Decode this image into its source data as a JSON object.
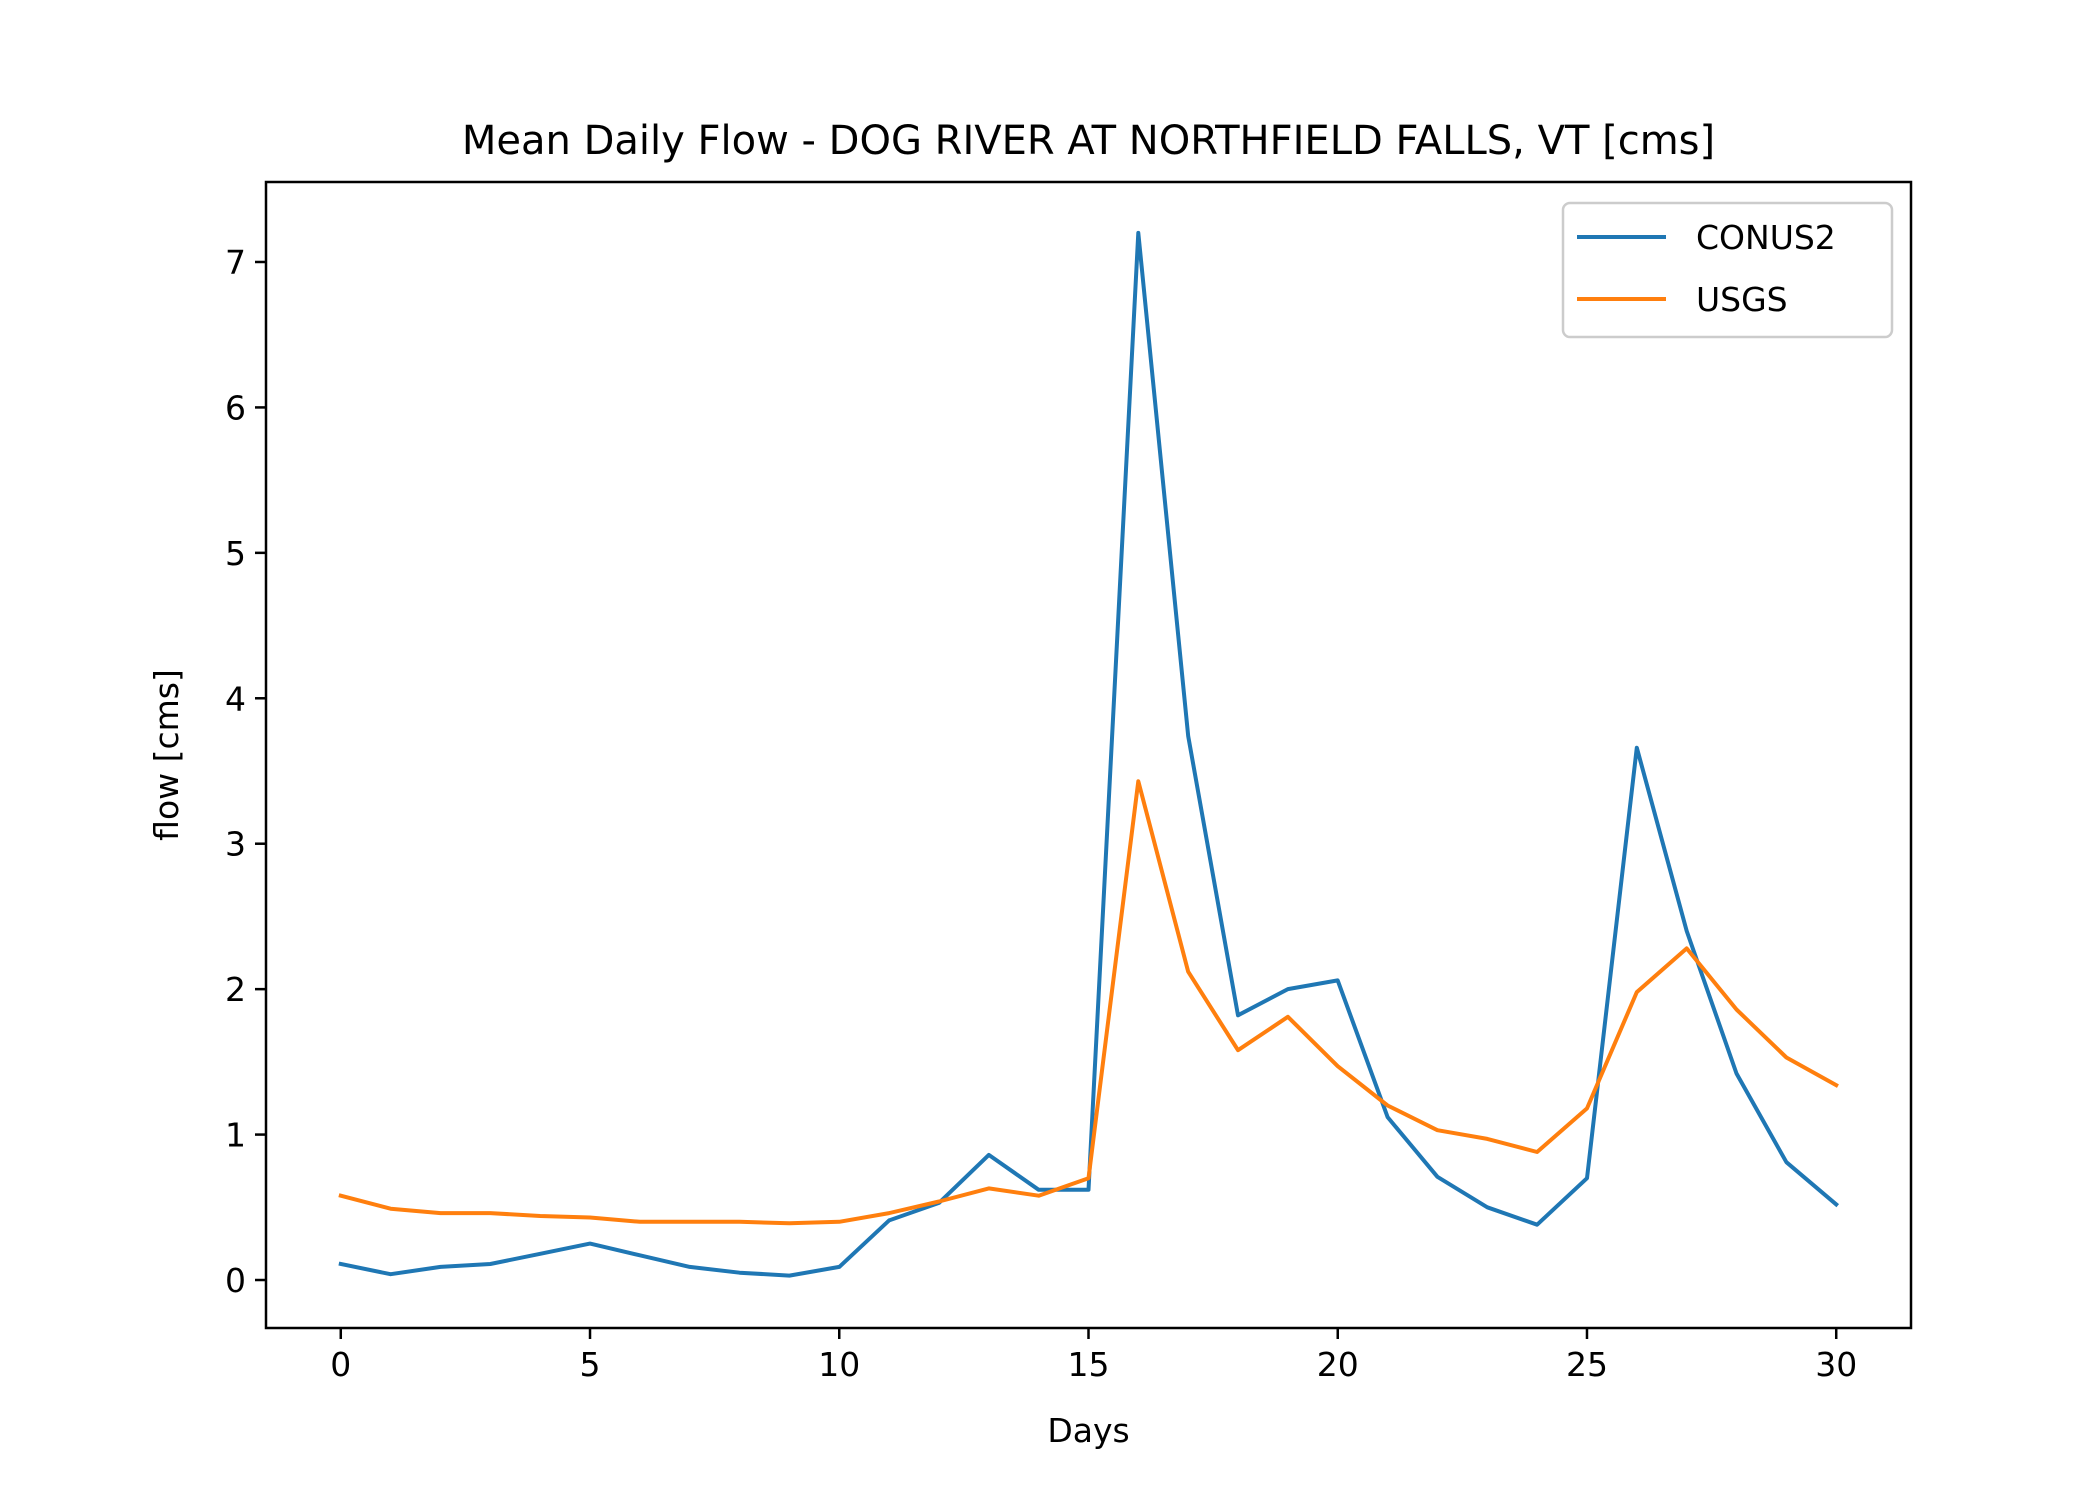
{
  "chart_data": {
    "type": "line",
    "title": "Mean Daily Flow - DOG RIVER AT NORTHFIELD FALLS, VT [cms]",
    "xlabel": "Days",
    "ylabel": "flow [cms]",
    "xlim": [
      -1.5,
      31.5
    ],
    "ylim": [
      -0.33,
      7.55
    ],
    "xticks": [
      0,
      5,
      10,
      15,
      20,
      25,
      30
    ],
    "yticks": [
      0,
      1,
      2,
      3,
      4,
      5,
      6,
      7
    ],
    "grid": false,
    "legend_position": "upper right",
    "x": [
      0,
      1,
      2,
      3,
      4,
      5,
      6,
      7,
      8,
      9,
      10,
      11,
      12,
      13,
      14,
      15,
      16,
      17,
      18,
      19,
      20,
      21,
      22,
      23,
      24,
      25,
      26,
      27,
      28,
      29,
      30
    ],
    "series": [
      {
        "name": "CONUS2",
        "color": "#1f77b4",
        "values": [
          0.11,
          0.04,
          0.09,
          0.11,
          0.18,
          0.25,
          0.17,
          0.09,
          0.05,
          0.03,
          0.09,
          0.41,
          0.53,
          0.86,
          0.62,
          0.62,
          7.2,
          3.74,
          1.82,
          2.0,
          2.06,
          1.12,
          0.71,
          0.5,
          0.38,
          0.7,
          3.66,
          2.4,
          1.42,
          0.81,
          0.52
        ]
      },
      {
        "name": "USGS",
        "color": "#ff7f0e",
        "values": [
          0.58,
          0.49,
          0.46,
          0.46,
          0.44,
          0.43,
          0.4,
          0.4,
          0.4,
          0.39,
          0.4,
          0.46,
          0.54,
          0.63,
          0.58,
          0.7,
          3.43,
          2.12,
          1.58,
          1.81,
          1.47,
          1.2,
          1.03,
          0.97,
          0.88,
          1.18,
          1.98,
          2.28,
          1.86,
          1.53,
          1.34
        ]
      }
    ]
  }
}
